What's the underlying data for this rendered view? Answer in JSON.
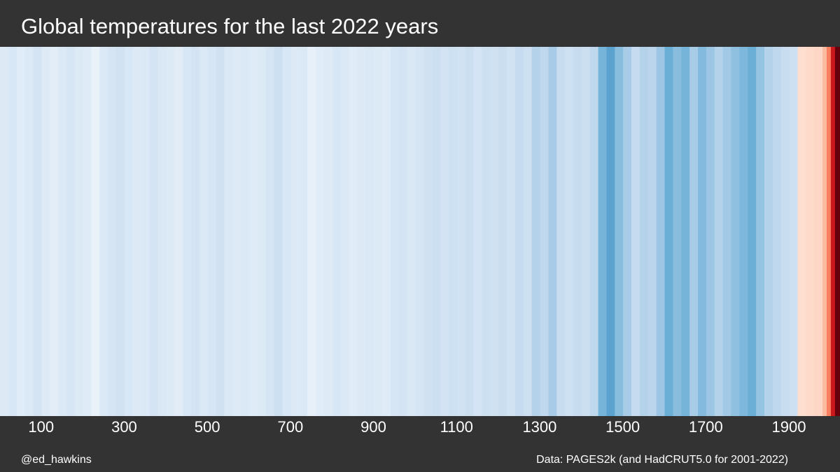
{
  "chart_data": {
    "type": "stripes",
    "title": "Global temperatures for the last 2022 years",
    "credit": "@ed_hawkins",
    "source": "Data: PAGES2k (and HadCRUT5.0 for 2001-2022)",
    "bins": [
      1,
      21,
      41,
      61,
      81,
      101,
      121,
      141,
      161,
      181,
      201,
      221,
      241,
      261,
      281,
      301,
      321,
      341,
      361,
      381,
      401,
      421,
      441,
      461,
      481,
      501,
      521,
      541,
      561,
      581,
      601,
      621,
      641,
      661,
      681,
      701,
      721,
      741,
      761,
      781,
      801,
      821,
      841,
      861,
      881,
      901,
      921,
      941,
      961,
      981,
      1001,
      1021,
      1041,
      1061,
      1081,
      1101,
      1121,
      1141,
      1161,
      1181,
      1201,
      1221,
      1241,
      1261,
      1281,
      1301,
      1321,
      1341,
      1361,
      1381,
      1401,
      1421,
      1441,
      1461,
      1481,
      1501,
      1521,
      1541,
      1561,
      1581,
      1601,
      1621,
      1641,
      1661,
      1681,
      1701,
      1721,
      1741,
      1761,
      1781,
      1801,
      1821,
      1841,
      1861,
      1881,
      1901,
      1921,
      1941,
      1961,
      1981,
      1991,
      2001,
      2011,
      2023
    ],
    "values": [
      -0.18,
      -0.22,
      -0.15,
      -0.2,
      -0.25,
      -0.17,
      -0.12,
      -0.2,
      -0.23,
      -0.19,
      -0.16,
      -0.05,
      -0.2,
      -0.24,
      -0.27,
      -0.22,
      -0.18,
      -0.2,
      -0.25,
      -0.21,
      -0.19,
      -0.14,
      -0.22,
      -0.26,
      -0.2,
      -0.23,
      -0.28,
      -0.21,
      -0.17,
      -0.2,
      -0.16,
      -0.19,
      -0.24,
      -0.3,
      -0.22,
      -0.18,
      -0.2,
      -0.07,
      -0.15,
      -0.17,
      -0.22,
      -0.2,
      -0.15,
      -0.18,
      -0.21,
      -0.19,
      -0.16,
      -0.23,
      -0.25,
      -0.21,
      -0.24,
      -0.28,
      -0.3,
      -0.26,
      -0.29,
      -0.27,
      -0.31,
      -0.25,
      -0.3,
      -0.28,
      -0.32,
      -0.27,
      -0.35,
      -0.3,
      -0.38,
      -0.36,
      -0.4,
      -0.33,
      -0.29,
      -0.34,
      -0.31,
      -0.36,
      -0.48,
      -0.52,
      -0.45,
      -0.4,
      -0.35,
      -0.38,
      -0.37,
      -0.42,
      -0.5,
      -0.45,
      -0.48,
      -0.4,
      -0.46,
      -0.42,
      -0.38,
      -0.41,
      -0.44,
      -0.47,
      -0.5,
      -0.43,
      -0.38,
      -0.36,
      -0.33,
      -0.3,
      0.02,
      0.05,
      0.08,
      0.3,
      0.45,
      0.7,
      1.0
    ],
    "xlim": [
      1,
      2023
    ],
    "xticks": [
      100,
      300,
      500,
      700,
      900,
      1100,
      1300,
      1500,
      1700,
      1900
    ]
  }
}
